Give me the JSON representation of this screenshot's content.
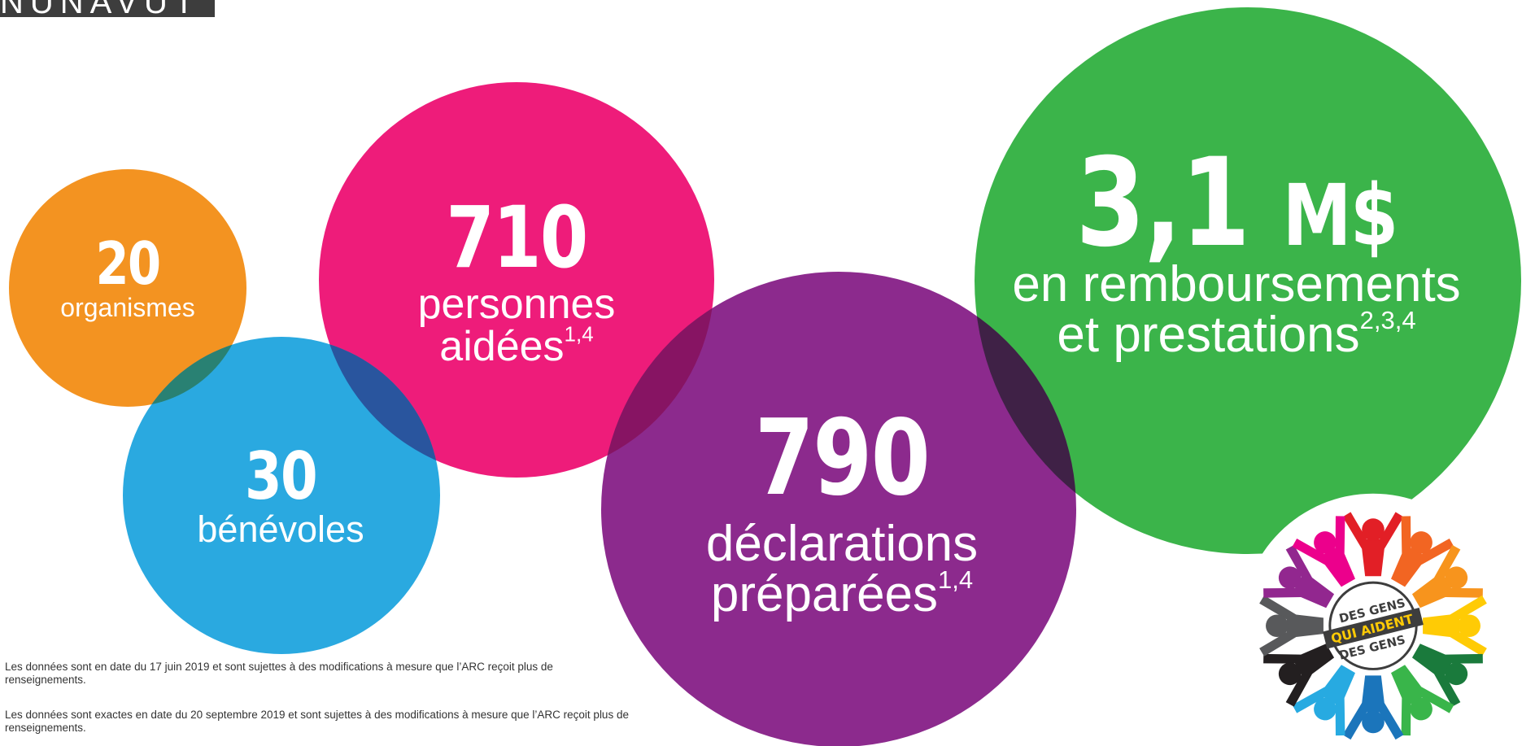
{
  "region": "NUNAVUT",
  "colors": {
    "orange": "#f39321",
    "blue": "#27a8e0",
    "pink": "#ee1c7a",
    "purple": "#8b278c",
    "green": "#3bb44a"
  },
  "stats": {
    "organizations": {
      "value": "20",
      "label": "organismes"
    },
    "volunteers": {
      "value": "30",
      "label": "bénévoles"
    },
    "people_helped": {
      "value": "710",
      "label_line1": "personnes",
      "label_line2": "aidées",
      "notes": "1,4"
    },
    "returns_prepared": {
      "value": "790",
      "label_line1": "déclarations",
      "label_line2": "préparées",
      "notes": "1,4"
    },
    "refunds": {
      "value": "3,1",
      "unit": "M$",
      "label_line1": "en remboursements",
      "label_line2": "et prestations",
      "notes": "2,3,4"
    }
  },
  "footnotes": [
    "Les données sont en date du 17 juin 2019 et sont sujettes à des modifications à mesure que l’ARC reçoit plus de renseignements.",
    "Les données sont exactes en date du 20 septembre 2019 et sont sujettes à des modifications à mesure que l’ARC reçoit plus de renseignements."
  ],
  "logo": {
    "line1": "DES GENS",
    "line2": "QUI AIDENT",
    "line3": "DES GENS",
    "figure_colors": [
      "#e21f26",
      "#f26522",
      "#f7941d",
      "#ffcb05",
      "#1a7a3c",
      "#39b54a",
      "#1b75bb",
      "#27aae1",
      "#231f20",
      "#58595b",
      "#92278f",
      "#ec008c"
    ]
  }
}
